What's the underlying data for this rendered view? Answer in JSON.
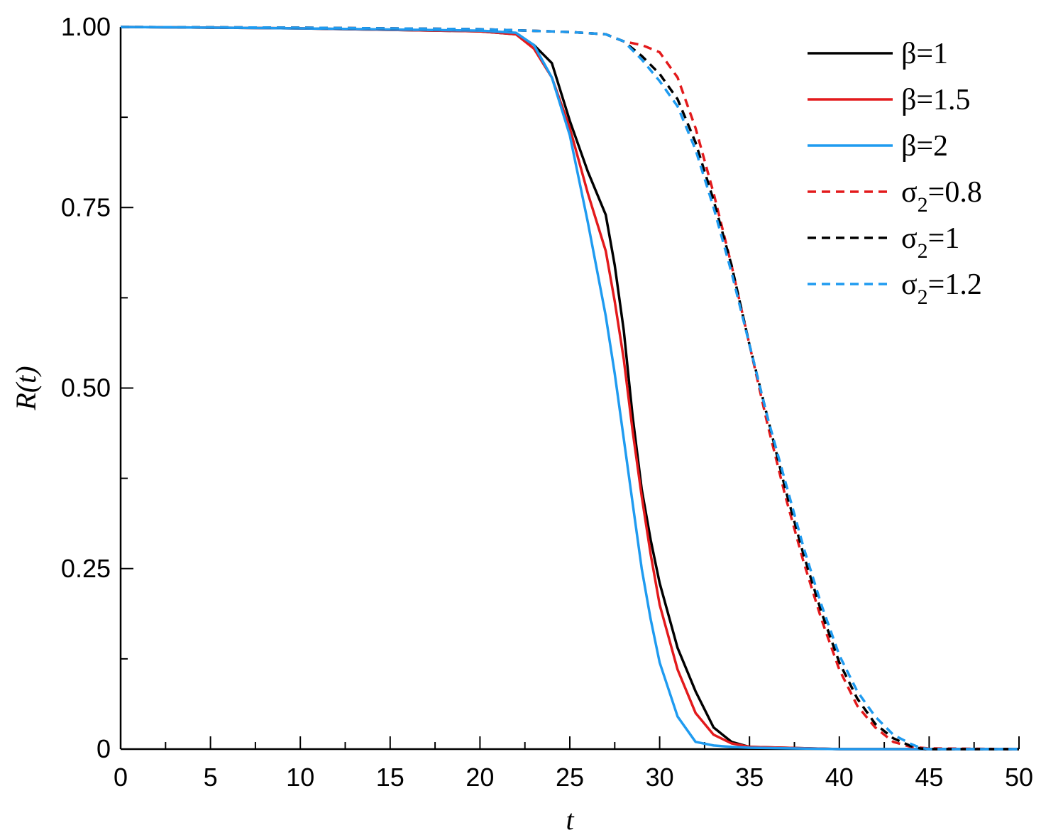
{
  "chart_data": {
    "type": "line",
    "title": "",
    "xlabel": "t",
    "ylabel": "R(t)",
    "xlim": [
      0,
      50
    ],
    "ylim": [
      0,
      1
    ],
    "xticks": [
      0,
      5,
      10,
      15,
      20,
      25,
      30,
      35,
      40,
      45,
      50
    ],
    "xtick_labels": [
      "0",
      "5",
      "10",
      "15",
      "20",
      "25",
      "30",
      "35",
      "40",
      "45",
      "50"
    ],
    "yticks": [
      0,
      0.25,
      0.5,
      0.75,
      1.0
    ],
    "ytick_labels": [
      "0",
      "0.25",
      "0.50",
      "0.75",
      "1.00"
    ],
    "legend_position": "top-right",
    "series": [
      {
        "name": "β=1",
        "label_main": "β=1",
        "label_sub": "",
        "label_tail": "",
        "color": "#000000",
        "dash": "solid",
        "x": [
          0,
          10,
          20,
          22,
          23,
          24,
          25,
          26,
          27,
          27.5,
          28,
          28.5,
          29,
          29.5,
          30,
          31,
          32,
          33,
          34,
          35,
          40,
          50
        ],
        "y": [
          1.0,
          0.998,
          0.994,
          0.99,
          0.975,
          0.95,
          0.87,
          0.8,
          0.74,
          0.67,
          0.58,
          0.46,
          0.36,
          0.29,
          0.23,
          0.14,
          0.08,
          0.03,
          0.01,
          0.003,
          0.0,
          0.0
        ]
      },
      {
        "name": "β=1.5",
        "label_main": "β=1.5",
        "label_sub": "",
        "label_tail": "",
        "color": "#e31a1c",
        "dash": "solid",
        "x": [
          0,
          10,
          20,
          22,
          23,
          24,
          25,
          26,
          27,
          27.5,
          28,
          28.5,
          29,
          29.5,
          30,
          31,
          32,
          33,
          34,
          35,
          40,
          50
        ],
        "y": [
          1.0,
          0.998,
          0.994,
          0.99,
          0.97,
          0.93,
          0.86,
          0.77,
          0.69,
          0.62,
          0.54,
          0.44,
          0.35,
          0.27,
          0.2,
          0.11,
          0.05,
          0.02,
          0.008,
          0.003,
          0.0,
          0.0
        ]
      },
      {
        "name": "β=2",
        "label_main": "β=2",
        "label_sub": "",
        "label_tail": "",
        "color": "#1f9bf0",
        "dash": "solid",
        "x": [
          0,
          10,
          20,
          22,
          23,
          24,
          25,
          26,
          27,
          27.5,
          28,
          28.5,
          29,
          29.5,
          30,
          31,
          32,
          33,
          34,
          35,
          40,
          50
        ],
        "y": [
          1.0,
          0.998,
          0.995,
          0.992,
          0.975,
          0.93,
          0.85,
          0.73,
          0.6,
          0.52,
          0.43,
          0.34,
          0.25,
          0.18,
          0.12,
          0.045,
          0.01,
          0.005,
          0.003,
          0.002,
          0.0,
          0.0
        ]
      },
      {
        "name": "σ2=0.8",
        "label_main": "σ",
        "label_sub": "2",
        "label_tail": "=0.8",
        "color": "#e31a1c",
        "dash": "dashed",
        "x": [
          0,
          10,
          20,
          25,
          27,
          28,
          29,
          30,
          31,
          32,
          33,
          34,
          35,
          36,
          37,
          38,
          39,
          40,
          41,
          42,
          43,
          44,
          45,
          50
        ],
        "y": [
          1.0,
          0.999,
          0.997,
          0.993,
          0.99,
          0.98,
          0.975,
          0.965,
          0.93,
          0.86,
          0.77,
          0.67,
          0.56,
          0.45,
          0.35,
          0.26,
          0.18,
          0.11,
          0.06,
          0.03,
          0.01,
          0.003,
          0.001,
          0.0
        ]
      },
      {
        "name": "σ2=1",
        "label_main": "σ",
        "label_sub": "2",
        "label_tail": "=1",
        "color": "#000000",
        "dash": "dashed",
        "x": [
          0,
          10,
          20,
          25,
          27,
          28,
          29,
          30,
          31,
          32,
          33,
          34,
          35,
          36,
          37,
          38,
          39,
          40,
          41,
          42,
          43,
          44,
          44.5,
          45,
          50
        ],
        "y": [
          1.0,
          0.999,
          0.997,
          0.993,
          0.99,
          0.98,
          0.96,
          0.935,
          0.9,
          0.84,
          0.76,
          0.67,
          0.56,
          0.46,
          0.36,
          0.27,
          0.19,
          0.12,
          0.07,
          0.035,
          0.015,
          0.004,
          0.001,
          0.0,
          0.0
        ]
      },
      {
        "name": "σ2=1.2",
        "label_main": "σ",
        "label_sub": "2",
        "label_tail": "=1.2",
        "color": "#1f9bf0",
        "dash": "dashed",
        "x": [
          0,
          10,
          20,
          25,
          27,
          28,
          29,
          30,
          31,
          32,
          33,
          34,
          35,
          36,
          37,
          38,
          39,
          40,
          41,
          42,
          43,
          44,
          44.5,
          45,
          50
        ],
        "y": [
          1.0,
          0.999,
          0.997,
          0.993,
          0.99,
          0.98,
          0.955,
          0.925,
          0.89,
          0.83,
          0.75,
          0.66,
          0.56,
          0.46,
          0.37,
          0.28,
          0.2,
          0.13,
          0.08,
          0.045,
          0.02,
          0.007,
          0.002,
          0.0,
          0.0
        ]
      }
    ]
  }
}
